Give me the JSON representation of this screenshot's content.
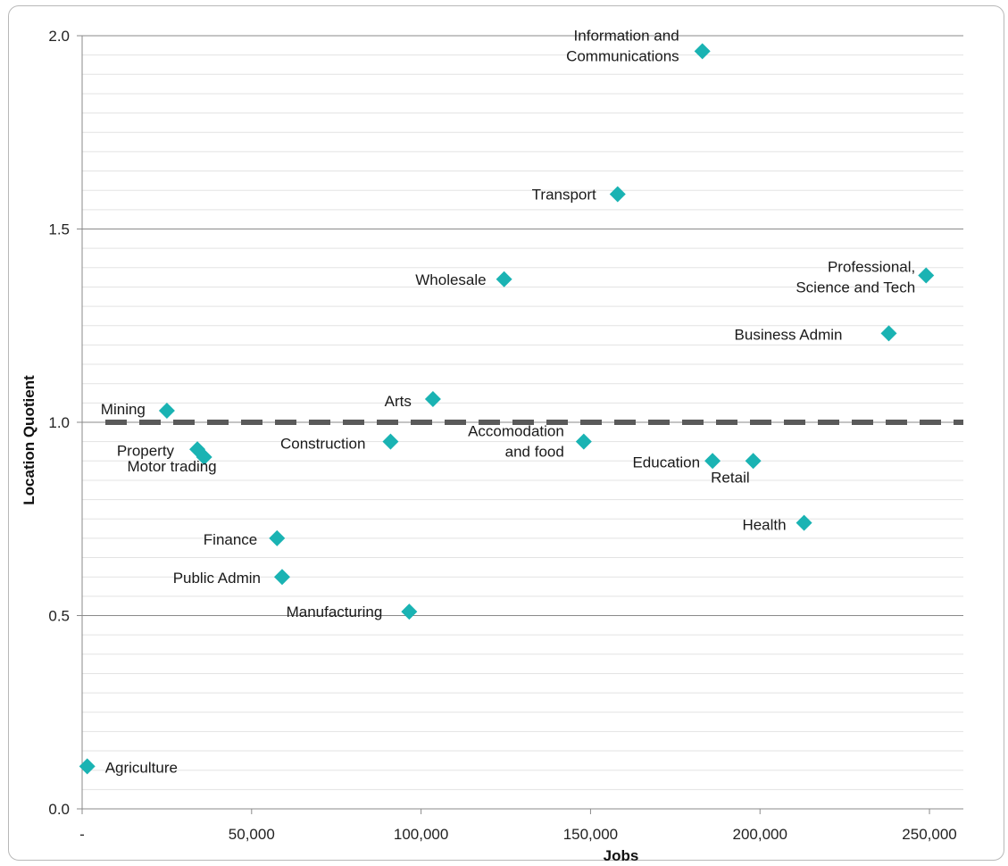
{
  "chart_data": {
    "type": "scatter",
    "title": "",
    "xlabel": "Jobs",
    "ylabel": "Location Quotient",
    "xlim": [
      0,
      260000
    ],
    "ylim": [
      0,
      2.0
    ],
    "x_ticks": [
      0,
      50000,
      100000,
      150000,
      200000,
      250000
    ],
    "x_tick_labels": [
      "-",
      "50,000",
      "100,000",
      "150,000",
      "200,000",
      "250,000"
    ],
    "y_ticks": [
      0,
      0.5,
      1.0,
      1.5,
      2.0
    ],
    "y_tick_labels": [
      "0.0",
      "0.5",
      "1.0",
      "1.5",
      "2.0"
    ],
    "grid": true,
    "reference_line": {
      "y": 1.0,
      "style": "dashed"
    },
    "marker_color": "#1ab3b3",
    "reference_color": "#5a5a5a",
    "points": [
      {
        "label": "Information  and\nCommunications",
        "x": 183000,
        "y": 1.96
      },
      {
        "label": "Transport",
        "x": 158000,
        "y": 1.59
      },
      {
        "label": "Wholesale",
        "x": 124500,
        "y": 1.37
      },
      {
        "label": "Professional,\nScience and Tech",
        "x": 249000,
        "y": 1.38
      },
      {
        "label": "Business Admin",
        "x": 238000,
        "y": 1.23
      },
      {
        "label": "Arts",
        "x": 103500,
        "y": 1.06
      },
      {
        "label": "Mining",
        "x": 25000,
        "y": 1.03
      },
      {
        "label": "Construction",
        "x": 91000,
        "y": 0.95
      },
      {
        "label": "Accomodation\nand food",
        "x": 148000,
        "y": 0.95
      },
      {
        "label": "Property",
        "x": 34000,
        "y": 0.93
      },
      {
        "label": "Motor trading",
        "x": 36000,
        "y": 0.91
      },
      {
        "label": "Education",
        "x": 186000,
        "y": 0.9
      },
      {
        "label": "Retail",
        "x": 198000,
        "y": 0.9
      },
      {
        "label": "Health",
        "x": 213000,
        "y": 0.74
      },
      {
        "label": "Finance",
        "x": 57500,
        "y": 0.7
      },
      {
        "label": "Public Admin",
        "x": 59000,
        "y": 0.6
      },
      {
        "label": "Manufacturing",
        "x": 96500,
        "y": 0.51
      },
      {
        "label": "Agriculture",
        "x": 1500,
        "y": 0.11
      }
    ]
  }
}
